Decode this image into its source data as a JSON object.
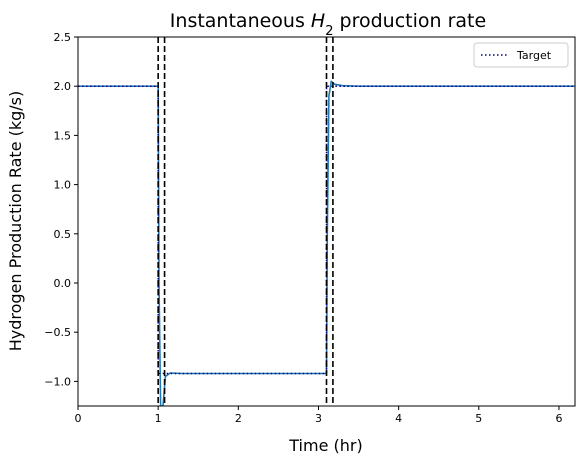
{
  "chart_data": {
    "type": "line",
    "title": {
      "prefix": "Instantaneous ",
      "symbol": "H",
      "subscript": "2",
      "suffix": " production rate"
    },
    "xlabel": "Time (hr)",
    "ylabel": "Hydrogen Production Rate (kg/s)",
    "xlim": [
      0,
      6.2
    ],
    "ylim": [
      -1.25,
      2.5
    ],
    "xticks": [
      0,
      1,
      2,
      3,
      4,
      5,
      6
    ],
    "xtick_labels": [
      "0",
      "1",
      "2",
      "3",
      "4",
      "5",
      "6"
    ],
    "yticks": [
      2.5,
      2.0,
      1.5,
      1.0,
      0.5,
      0.0,
      -0.5,
      -1.0
    ],
    "ytick_labels": [
      "2.5",
      "2.0",
      "1.5",
      "1.0",
      "0.5",
      "0.0",
      "−0.5",
      "−1.0"
    ],
    "grid": false,
    "legend": {
      "placement": "top-right",
      "entries": [
        "Target"
      ]
    },
    "series": [
      {
        "role": "actual",
        "color": "#1f77b4",
        "style": "solid",
        "x": [
          0,
          1.0,
          1.01,
          1.03,
          1.06,
          1.09,
          1.15,
          1.3,
          3.1,
          3.11,
          3.13,
          3.16,
          3.2,
          3.3,
          3.5,
          6.2
        ],
        "y": [
          2.0,
          2.0,
          0.0,
          -1.25,
          -1.25,
          -0.95,
          -0.915,
          -0.92,
          -0.92,
          0.5,
          1.9,
          2.05,
          2.02,
          2.005,
          2.0,
          2.0
        ]
      },
      {
        "name": "Target",
        "color": "#000080",
        "style": "dotted",
        "x": [
          0,
          1.0,
          1.0,
          3.1,
          3.1,
          6.2
        ],
        "y": [
          2.0,
          2.0,
          -0.92,
          -0.92,
          2.0,
          2.0
        ]
      }
    ],
    "vlines": [
      {
        "x": 1.0,
        "style": "dashed",
        "color": "#000000"
      },
      {
        "x": 1.08,
        "style": "dashed",
        "color": "#000000"
      },
      {
        "x": 3.1,
        "style": "dashed",
        "color": "#000000"
      },
      {
        "x": 3.18,
        "style": "dashed",
        "color": "#000000"
      }
    ]
  }
}
